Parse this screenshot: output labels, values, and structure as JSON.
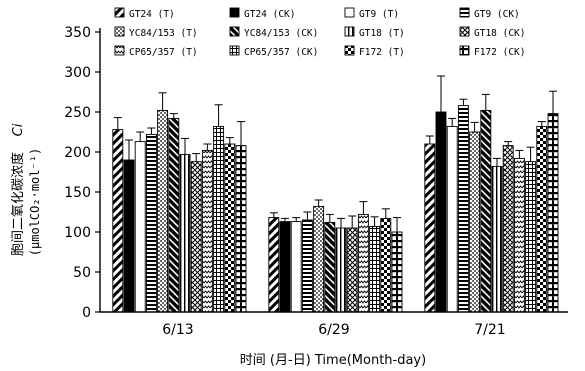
{
  "chart_data": {
    "type": "bar",
    "ylabel_line1": "胞间二氧化碳浓度",
    "ylabel_var": "Ci",
    "ylabel_line2": "(μmolCO₂·mol⁻¹)",
    "xlabel": "时间 (月-日) Time(Month-day)",
    "categories": [
      "6/13",
      "6/29",
      "7/21"
    ],
    "ylim": [
      0,
      350
    ],
    "yticks": [
      0,
      50,
      100,
      150,
      200,
      250,
      300,
      350
    ],
    "legend_position": "top",
    "series": [
      {
        "name": "GT24 (T)",
        "values": [
          228,
          118,
          210
        ],
        "errors": [
          15,
          6,
          10
        ],
        "pattern": "diag"
      },
      {
        "name": "GT24 (CK)",
        "values": [
          190,
          113,
          250
        ],
        "errors": [
          25,
          4,
          45
        ],
        "pattern": "solid"
      },
      {
        "name": "GT9 (T)",
        "values": [
          213,
          113,
          232
        ],
        "errors": [
          12,
          5,
          10
        ],
        "pattern": "white"
      },
      {
        "name": "GT9 (CK)",
        "values": [
          222,
          115,
          258
        ],
        "errors": [
          8,
          10,
          8
        ],
        "pattern": "hstripe"
      },
      {
        "name": "YC84/153 (T)",
        "values": [
          252,
          132,
          225
        ],
        "errors": [
          22,
          8,
          12
        ],
        "pattern": "dots"
      },
      {
        "name": "YC84/153 (CK)",
        "values": [
          242,
          112,
          252
        ],
        "errors": [
          6,
          10,
          20
        ],
        "pattern": "diag2"
      },
      {
        "name": "GT18 (T)",
        "values": [
          197,
          105,
          182
        ],
        "errors": [
          20,
          12,
          10
        ],
        "pattern": "vstripe"
      },
      {
        "name": "GT18 (CK)",
        "values": [
          188,
          105,
          208
        ],
        "errors": [
          10,
          15,
          5
        ],
        "pattern": "crossdiag"
      },
      {
        "name": "CP65/357 (T)",
        "values": [
          202,
          122,
          192
        ],
        "errors": [
          8,
          16,
          10
        ],
        "pattern": "wave"
      },
      {
        "name": "CP65/357 (CK)",
        "values": [
          232,
          107,
          188
        ],
        "errors": [
          27,
          12,
          18
        ],
        "pattern": "cp"
      },
      {
        "name": "F172 (T)",
        "values": [
          210,
          117,
          232
        ],
        "errors": [
          8,
          12,
          6
        ],
        "pattern": "check"
      },
      {
        "name": "F172 (CK)",
        "values": [
          208,
          100,
          248
        ],
        "errors": [
          30,
          18,
          28
        ],
        "pattern": "fdash"
      }
    ]
  }
}
